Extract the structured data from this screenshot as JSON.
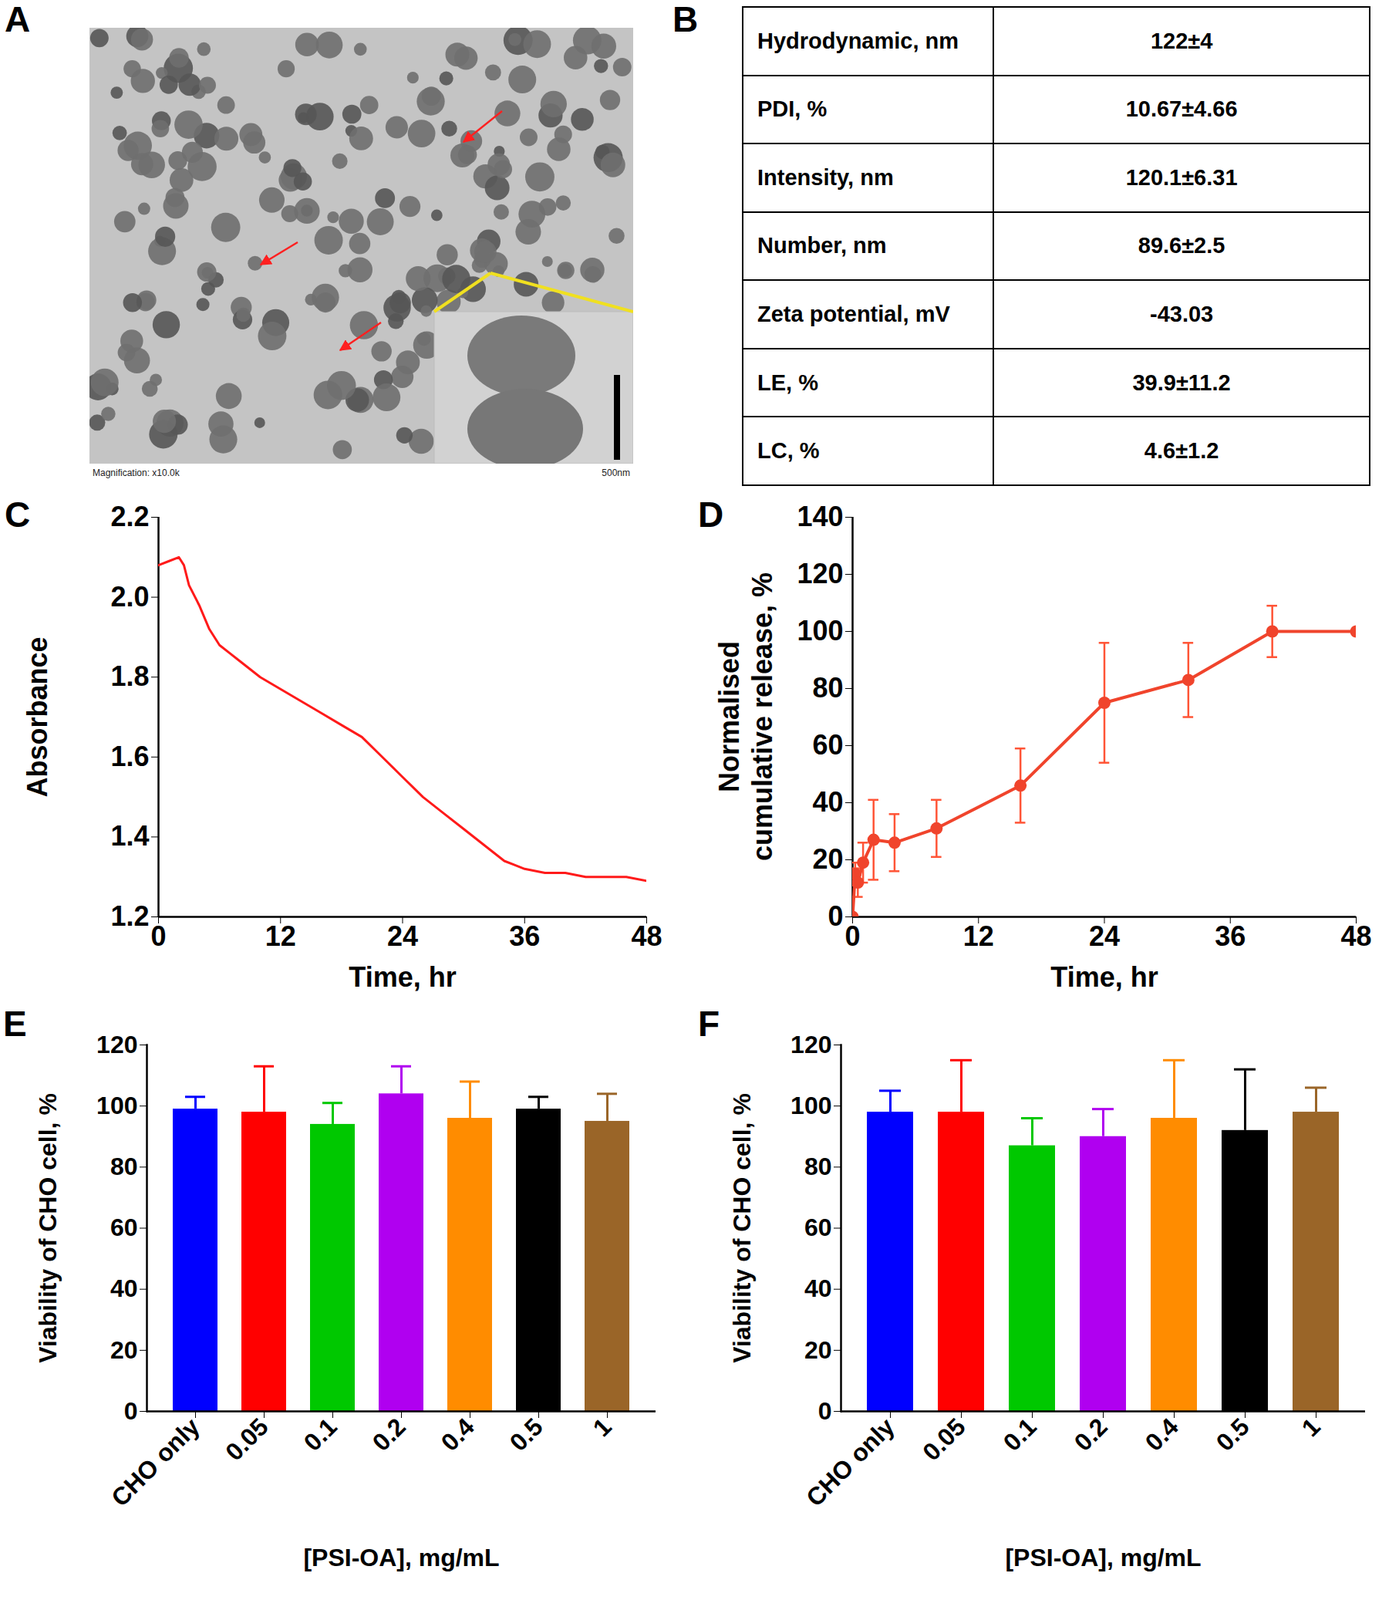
{
  "image": {
    "panel": "A",
    "caption": "Magnification: x10.0k",
    "scale_bar": "500nm"
  },
  "table": {
    "panel": "B",
    "rows": [
      [
        "Hydrodynamic, nm",
        "122±4"
      ],
      [
        "PDI, %",
        "10.67±4.66"
      ],
      [
        "Intensity, nm",
        "120.1±6.31"
      ],
      [
        "Number, nm",
        "89.6±2.5"
      ],
      [
        "Zeta potential, mV",
        "-43.03"
      ],
      [
        "LE, %",
        "39.9±11.2"
      ],
      [
        "LC, %",
        "4.6±1.2"
      ]
    ]
  },
  "chart_data": [
    {
      "panel": "C",
      "type": "line",
      "color": "#ff1a1a",
      "xlabel": "Time, hr",
      "ylabel": "Absorbance",
      "x": [
        0,
        1,
        2,
        2.5,
        3,
        4,
        5,
        6,
        7,
        8,
        10,
        12,
        14,
        16,
        18,
        20,
        22,
        24,
        26,
        28,
        30,
        32,
        34,
        35,
        36,
        38,
        40,
        42,
        44,
        46,
        48
      ],
      "values": [
        2.08,
        2.09,
        2.1,
        2.08,
        2.03,
        1.98,
        1.92,
        1.88,
        1.86,
        1.84,
        1.8,
        1.77,
        1.74,
        1.71,
        1.68,
        1.65,
        1.6,
        1.55,
        1.5,
        1.46,
        1.42,
        1.38,
        1.34,
        1.33,
        1.32,
        1.31,
        1.31,
        1.3,
        1.3,
        1.3,
        1.29
      ],
      "xlim": [
        0,
        48
      ],
      "xticks": [
        0,
        12,
        24,
        36,
        48
      ],
      "ylim": [
        1.2,
        2.2
      ],
      "yticks": [
        1.2,
        1.4,
        1.6,
        1.8,
        {
          "value": 2,
          "label": "2.0"
        },
        2.2
      ]
    },
    {
      "panel": "D",
      "type": "line",
      "marker": "circle",
      "color": "#f0442c",
      "xlabel": "Time, hr",
      "ylabel": "Normalised cumulative release, %",
      "x": [
        0,
        0.25,
        0.5,
        1,
        2,
        4,
        8,
        16,
        24,
        32,
        40,
        48
      ],
      "values": [
        0,
        15,
        12,
        19,
        27,
        26,
        31,
        46,
        75,
        83,
        100,
        100
      ],
      "errors": [
        0,
        4,
        5,
        7,
        14,
        10,
        10,
        13,
        21,
        13,
        9,
        0
      ],
      "xlim": [
        0,
        48
      ],
      "xticks": [
        0,
        12,
        24,
        36,
        48
      ],
      "ylim": [
        0,
        140
      ],
      "yticks": [
        0,
        20,
        40,
        60,
        80,
        100,
        120,
        140
      ]
    },
    {
      "panel": "E",
      "type": "bar",
      "xlabel": "[PSI-OA], mg/mL",
      "ylabel": "Viability of CHO cell, %",
      "categories": [
        "CHO only",
        "0.05",
        "0.1",
        "0.2",
        "0.4",
        "0.5",
        "1"
      ],
      "values": [
        99,
        98,
        94,
        104,
        96,
        99,
        95
      ],
      "errors": [
        4,
        15,
        7,
        9,
        12,
        4,
        9
      ],
      "colors": [
        "#0000ff",
        "#ff0000",
        "#00c800",
        "#b000f0",
        "#ff8c00",
        "#000000",
        "#9a6528"
      ],
      "ylim": [
        0,
        120
      ],
      "yticks": [
        0,
        20,
        40,
        60,
        80,
        100,
        120
      ]
    },
    {
      "panel": "F",
      "type": "bar",
      "xlabel": "[PSI-OA], mg/mL",
      "ylabel": "Viability of CHO cell, %",
      "categories": [
        "CHO only",
        "0.05",
        "0.1",
        "0.2",
        "0.4",
        "0.5",
        "1"
      ],
      "values": [
        98,
        98,
        87,
        90,
        96,
        92,
        98
      ],
      "errors": [
        7,
        17,
        9,
        9,
        19,
        20,
        8
      ],
      "colors": [
        "#0000ff",
        "#ff0000",
        "#00c800",
        "#b000f0",
        "#ff8c00",
        "#000000",
        "#9a6528"
      ],
      "ylim": [
        0,
        120
      ],
      "yticks": [
        0,
        20,
        40,
        60,
        80,
        100,
        120
      ]
    }
  ]
}
